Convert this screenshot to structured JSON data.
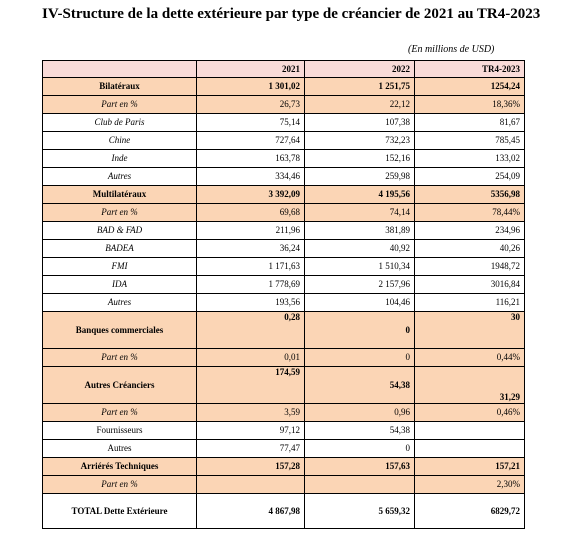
{
  "title": "IV-Structure de la dette extérieure par type de créancier de 2021 au TR4-2023",
  "unit_note": "(En millions de USD)",
  "table": {
    "columns": [
      "",
      "2021",
      "2022",
      "TR4-2023"
    ],
    "rows": [
      {
        "label": "Bilatéraux",
        "v2021": "1 301,02",
        "v2022": "1 251,75",
        "vtr4": "1254,24"
      },
      {
        "label": "Part en %",
        "v2021": "26,73",
        "v2022": "22,12",
        "vtr4": "18,36%"
      },
      {
        "label": "Club de Paris",
        "v2021": "75,14",
        "v2022": "107,38",
        "vtr4": "81,67"
      },
      {
        "label": "Chine",
        "v2021": "727,64",
        "v2022": "732,23",
        "vtr4": "785,45"
      },
      {
        "label": "Inde",
        "v2021": "163,78",
        "v2022": "152,16",
        "vtr4": "133,02"
      },
      {
        "label": "Autres",
        "v2021": "334,46",
        "v2022": "259,98",
        "vtr4": "254,09"
      },
      {
        "label": "Multilatéraux",
        "v2021": "3 392,09",
        "v2022": "4 195,56",
        "vtr4": "5356,98"
      },
      {
        "label": "Part en %",
        "v2021": "69,68",
        "v2022": "74,14",
        "vtr4": "78,44%"
      },
      {
        "label": "BAD & FAD",
        "v2021": "211,96",
        "v2022": "381,89",
        "vtr4": "234,96"
      },
      {
        "label": "BADEA",
        "v2021": "36,24",
        "v2022": "40,92",
        "vtr4": "40,26"
      },
      {
        "label": "FMI",
        "v2021": "1 171,63",
        "v2022": "1 510,34",
        "vtr4": "1948,72"
      },
      {
        "label": "IDA",
        "v2021": "1 778,69",
        "v2022": "2 157,96",
        "vtr4": "3016,84"
      },
      {
        "label": "Autres",
        "v2021": "193,56",
        "v2022": "104,46",
        "vtr4": "116,21"
      },
      {
        "label": "Banques commerciales",
        "v2021": "0,28",
        "v2022": "0",
        "vtr4": "30"
      },
      {
        "label": "Part en %",
        "v2021": "0,01",
        "v2022": "0",
        "vtr4": "0,44%"
      },
      {
        "label": "Autres Créanciers",
        "v2021": "174,59",
        "v2022": "54,38",
        "vtr4": "31,29"
      },
      {
        "label": "Part en %",
        "v2021": "3,59",
        "v2022": "0,96",
        "vtr4": "0,46%"
      },
      {
        "label": "Fournisseurs",
        "v2021": "97,12",
        "v2022": "54,38",
        "vtr4": ""
      },
      {
        "label": "Autres",
        "v2021": "77,47",
        "v2022": "0",
        "vtr4": ""
      },
      {
        "label": "Arriérés Techniques",
        "v2021": "157,28",
        "v2022": "157,63",
        "vtr4": "157,21"
      },
      {
        "label": "Part en %",
        "v2021": "",
        "v2022": "",
        "vtr4": "2,30%"
      },
      {
        "label": "TOTAL Dette Extérieure",
        "v2021": "4 867,98",
        "v2022": "5 659,32",
        "vtr4": "6829,72"
      }
    ]
  },
  "colors": {
    "header_fill": "#f9dbd8",
    "highlight_fill": "#fbd5b5",
    "border": "#000000"
  }
}
